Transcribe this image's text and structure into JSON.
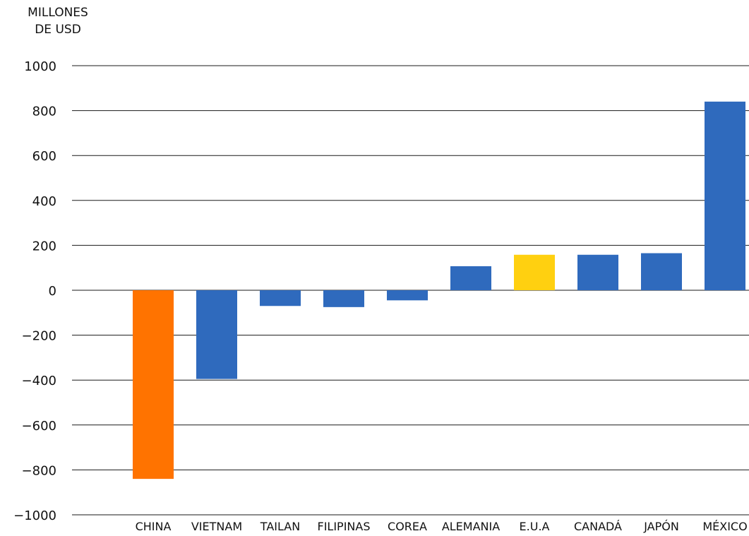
{
  "chart_data": {
    "type": "bar",
    "title": "",
    "ylabel_lines": [
      "MILLONES",
      "DE USD"
    ],
    "xlabel": "",
    "categories": [
      "CHINA",
      "VIETNAM",
      "TAILAN",
      "FILIPINAS",
      "COREA",
      "ALEMANIA",
      "E.U.A",
      "CANADÁ",
      "JAPÓN",
      "MÉXICO"
    ],
    "values": [
      -840,
      -395,
      -70,
      -75,
      -45,
      107,
      158,
      158,
      165,
      840
    ],
    "bar_colors": [
      "#ff7300",
      "#2f6abd",
      "#2f6abd",
      "#2f6abd",
      "#2f6abd",
      "#2f6abd",
      "#ffd010",
      "#2f6abd",
      "#2f6abd",
      "#2f6abd"
    ],
    "ylim": [
      -1000,
      1000
    ],
    "yticks": [
      1000,
      800,
      600,
      400,
      200,
      0,
      -200,
      -400,
      -600,
      -800,
      -1000
    ],
    "ytick_labels": [
      "1000",
      "800",
      "600",
      "400",
      "200",
      "0",
      "−200",
      "−400",
      "−600",
      "−800",
      "−1000"
    ],
    "grid": true,
    "legend": "none"
  }
}
